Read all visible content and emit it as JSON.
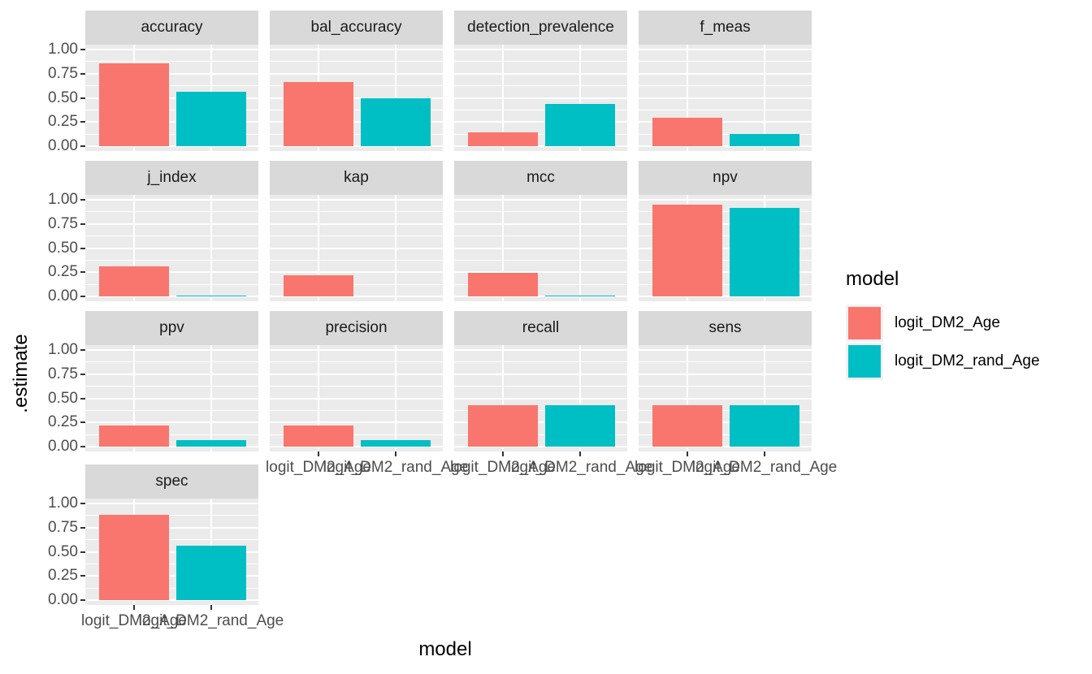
{
  "figure": {
    "background": "#ffffff",
    "panel_bg": "#EBEBEB",
    "strip_bg": "#D9D9D9",
    "gridline_color": "#ffffff",
    "tick_color": "#333333",
    "axis_text_color": "#4D4D4D"
  },
  "legend": {
    "title": "model",
    "items": [
      {
        "label": "logit_DM2_Age",
        "color": "#F8766D"
      },
      {
        "label": "logit_DM2_rand_Age",
        "color": "#00BFC4"
      }
    ]
  },
  "chart_data": {
    "type": "bar",
    "title": "",
    "xlabel": "model",
    "ylabel": ".estimate",
    "ylim": [
      0,
      1
    ],
    "grid": true,
    "legend_position": "right",
    "categories": [
      "logit_DM2_Age",
      "logit_DM2_rand_Age"
    ],
    "series_colors": [
      "#F8766D",
      "#00BFC4"
    ],
    "y_tick_values": [
      1.0,
      0.75,
      0.5,
      0.25,
      0.0
    ],
    "y_tick_labels": [
      "1.00",
      "0.75",
      "0.50",
      "0.25",
      "0.00"
    ],
    "facet_layout": {
      "ncol": 4,
      "nrow": 4
    },
    "facets": [
      {
        "label": "accuracy",
        "values": [
          0.86,
          0.56
        ]
      },
      {
        "label": "bal_accuracy",
        "values": [
          0.66,
          0.5
        ]
      },
      {
        "label": "detection_prevalence",
        "values": [
          0.14,
          0.44
        ]
      },
      {
        "label": "f_meas",
        "values": [
          0.29,
          0.13
        ]
      },
      {
        "label": "j_index",
        "values": [
          0.31,
          0.005
        ]
      },
      {
        "label": "kap",
        "values": [
          0.22,
          0.0
        ]
      },
      {
        "label": "mcc",
        "values": [
          0.24,
          0.005
        ]
      },
      {
        "label": "npv",
        "values": [
          0.95,
          0.92
        ]
      },
      {
        "label": "ppv",
        "values": [
          0.22,
          0.07
        ]
      },
      {
        "label": "precision",
        "values": [
          0.22,
          0.07
        ]
      },
      {
        "label": "recall",
        "values": [
          0.43,
          0.43
        ]
      },
      {
        "label": "sens",
        "values": [
          0.43,
          0.43
        ]
      },
      {
        "label": "spec",
        "values": [
          0.88,
          0.56
        ]
      }
    ]
  }
}
